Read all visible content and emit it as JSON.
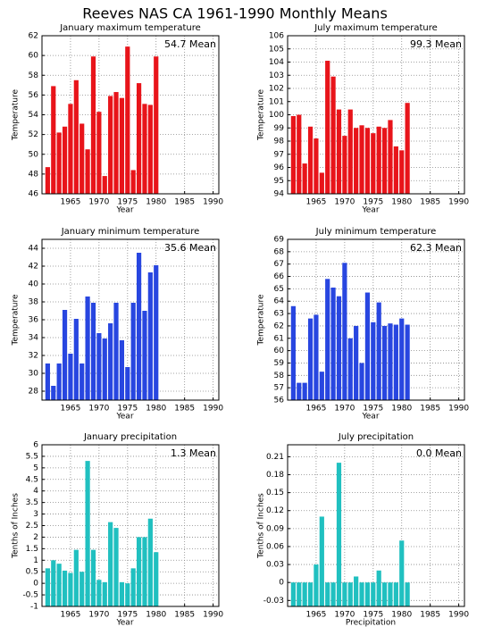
{
  "title": "Reeves NAS CA  1961-1990 Monthly Means",
  "chart_data": [
    {
      "type": "bar",
      "title": "January maximum temperature",
      "annotation": "54.7 Mean",
      "xlabel": "Year",
      "ylabel": "Temperature",
      "color": "#e8141a",
      "grid": true,
      "x": [
        1961,
        1962,
        1963,
        1964,
        1965,
        1966,
        1967,
        1968,
        1969,
        1970,
        1971,
        1972,
        1973,
        1974,
        1975,
        1976,
        1977,
        1978,
        1979,
        1980
      ],
      "values": [
        48.7,
        56.9,
        52.2,
        52.8,
        55.1,
        57.5,
        53.1,
        50.5,
        59.9,
        54.3,
        47.8,
        55.9,
        56.3,
        55.7,
        60.9,
        48.4,
        57.2,
        55.1,
        55.0,
        59.9
      ],
      "xlim": [
        1960,
        1991
      ],
      "xticks": [
        1965,
        1970,
        1975,
        1980,
        1985,
        1990
      ],
      "ylim": [
        46,
        62
      ],
      "yticks": [
        46,
        48,
        50,
        52,
        54,
        56,
        58,
        60,
        62
      ]
    },
    {
      "type": "bar",
      "title": "July maximum temperature",
      "annotation": "99.3 Mean",
      "xlabel": "Year",
      "ylabel": "Temperature",
      "color": "#e8141a",
      "grid": true,
      "x": [
        1961,
        1962,
        1963,
        1964,
        1965,
        1966,
        1967,
        1968,
        1969,
        1970,
        1971,
        1972,
        1973,
        1974,
        1975,
        1976,
        1977,
        1978,
        1979,
        1980,
        1981
      ],
      "values": [
        99.9,
        100.0,
        96.3,
        99.1,
        98.2,
        95.6,
        104.1,
        102.9,
        100.4,
        98.4,
        100.4,
        99.0,
        99.2,
        99.0,
        98.6,
        99.1,
        99.0,
        99.6,
        97.6,
        97.3,
        100.9
      ],
      "xlim": [
        1960,
        1991
      ],
      "xticks": [
        1965,
        1970,
        1975,
        1980,
        1985,
        1990
      ],
      "ylim": [
        94,
        106
      ],
      "yticks": [
        94,
        95,
        96,
        97,
        98,
        99,
        100,
        101,
        102,
        103,
        104,
        105,
        106
      ]
    },
    {
      "type": "bar",
      "title": "January minimum temperature",
      "annotation": "35.6 Mean",
      "xlabel": "Year",
      "ylabel": "Temperature",
      "color": "#2846e0",
      "grid": true,
      "x": [
        1961,
        1962,
        1963,
        1964,
        1965,
        1966,
        1967,
        1968,
        1969,
        1970,
        1971,
        1972,
        1973,
        1974,
        1975,
        1976,
        1977,
        1978,
        1979,
        1980
      ],
      "values": [
        31.1,
        28.6,
        31.1,
        37.1,
        32.2,
        36.1,
        31.1,
        38.6,
        37.9,
        34.5,
        33.9,
        35.6,
        37.9,
        33.7,
        30.7,
        37.9,
        43.5,
        37.0,
        41.3,
        42.1
      ],
      "xlim": [
        1960,
        1991
      ],
      "xticks": [
        1965,
        1970,
        1975,
        1980,
        1985,
        1990
      ],
      "ylim": [
        27,
        45
      ],
      "yticks": [
        28,
        30,
        32,
        34,
        36,
        38,
        40,
        42,
        44
      ]
    },
    {
      "type": "bar",
      "title": "July minimum temperature",
      "annotation": "62.3 Mean",
      "xlabel": "Year",
      "ylabel": "Temperature",
      "color": "#2846e0",
      "grid": true,
      "x": [
        1961,
        1962,
        1963,
        1964,
        1965,
        1966,
        1967,
        1968,
        1969,
        1970,
        1971,
        1972,
        1973,
        1974,
        1975,
        1976,
        1977,
        1978,
        1979,
        1980,
        1981
      ],
      "values": [
        63.6,
        57.4,
        57.4,
        62.6,
        62.9,
        58.3,
        65.8,
        65.1,
        64.4,
        67.1,
        61.0,
        62.0,
        59.0,
        64.7,
        62.3,
        63.9,
        62.0,
        62.2,
        62.1,
        62.6,
        62.1
      ],
      "xlim": [
        1960,
        1991
      ],
      "xticks": [
        1965,
        1970,
        1975,
        1980,
        1985,
        1990
      ],
      "ylim": [
        56,
        69
      ],
      "yticks": [
        56,
        57,
        58,
        59,
        60,
        61,
        62,
        63,
        64,
        65,
        66,
        67,
        68,
        69
      ]
    },
    {
      "type": "bar",
      "title": "January precipitation",
      "annotation": "1.3 Mean",
      "xlabel": "Year",
      "ylabel": "Tenths of Inches",
      "color": "#20c0c0",
      "grid": true,
      "x": [
        1961,
        1962,
        1963,
        1964,
        1965,
        1966,
        1967,
        1968,
        1969,
        1970,
        1971,
        1972,
        1973,
        1974,
        1975,
        1976,
        1977,
        1978,
        1979,
        1980
      ],
      "values": [
        0.65,
        1.0,
        0.85,
        0.55,
        0.45,
        1.45,
        0.5,
        5.3,
        1.45,
        0.15,
        0.05,
        2.65,
        2.4,
        0.05,
        0.0,
        0.65,
        2.0,
        2.0,
        2.8,
        1.35
      ],
      "xlim": [
        1960,
        1991
      ],
      "xticks": [
        1965,
        1970,
        1975,
        1980,
        1985,
        1990
      ],
      "ylim": [
        -1,
        6
      ],
      "yticks": [
        -1,
        -0.5,
        0,
        0.5,
        1,
        1.5,
        2,
        2.5,
        3,
        3.5,
        4,
        4.5,
        5,
        5.5,
        6
      ]
    },
    {
      "type": "bar",
      "title": "July precipitation",
      "annotation": "0.0 Mean",
      "xlabel": "Precipitation",
      "ylabel": "Tenths of Inches",
      "color": "#20c0c0",
      "grid": true,
      "x": [
        1961,
        1962,
        1963,
        1964,
        1965,
        1966,
        1967,
        1968,
        1969,
        1970,
        1971,
        1972,
        1973,
        1974,
        1975,
        1976,
        1977,
        1978,
        1979,
        1980,
        1981
      ],
      "values": [
        0,
        0,
        0,
        0,
        0.03,
        0.11,
        0,
        0,
        0.2,
        0,
        0,
        0.01,
        0,
        0,
        0,
        0.02,
        0,
        0,
        0,
        0.07,
        0
      ],
      "xlim": [
        1960,
        1991
      ],
      "xticks": [
        1965,
        1970,
        1975,
        1980,
        1985,
        1990
      ],
      "ylim": [
        -0.04,
        0.23
      ],
      "yticks": [
        -0.03,
        0,
        0.03,
        0.06,
        0.09,
        0.12,
        0.15,
        0.18,
        0.21
      ]
    }
  ]
}
